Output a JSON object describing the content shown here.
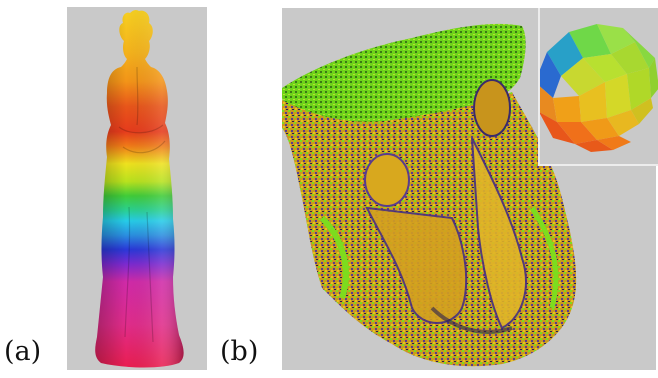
{
  "figure": {
    "panels": [
      {
        "label": "(a)",
        "content": "statue-colored-by-height"
      },
      {
        "label": "(b)",
        "content": "relief-colored-by-normals"
      }
    ],
    "inset": {
      "content": "normal-sphere-legend"
    },
    "colors": {
      "background_gray": "#c9c9c9",
      "bands": [
        "#f5c518",
        "#f39a18",
        "#e8501a",
        "#f0e020",
        "#3ec83a",
        "#25c8e0",
        "#2a36d8",
        "#e0309a",
        "#e8206a"
      ],
      "relief_palette": [
        "#7ddc1e",
        "#e0b020",
        "#b85a1c",
        "#5a3c8c",
        "#2a2050"
      ]
    }
  }
}
